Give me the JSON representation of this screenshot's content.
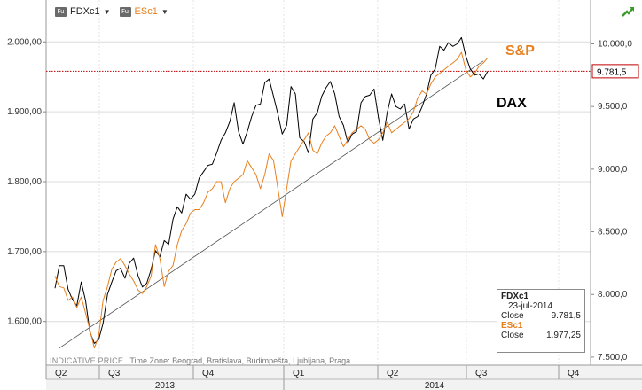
{
  "legend": {
    "ric1_icon": "Fu",
    "ric1_name": "FDXc1",
    "ric2_icon": "Fu",
    "ric2_name": "ESc1",
    "caret": "▼"
  },
  "annotations": {
    "sp_label": "S&P",
    "dax_label": "DAX",
    "last_price_flag": "9.781,5"
  },
  "infobox": {
    "series1_name": "FDXc1",
    "date": "23-jul-2014",
    "close_label": "Close",
    "series1_close": "9.781,5",
    "series2_name": "ESc1",
    "series2_close": "1.977,25"
  },
  "footer": {
    "price_type": "INDICATIVE PRICE",
    "timezone": "Time Zone: Beograd, Bratislava, Budimpešta, Ljubljana, Praga"
  },
  "colors": {
    "dax": "#000000",
    "sp": "#e8801e",
    "flag_line": "#c00000",
    "grid": "#d9d9d9"
  },
  "chart_data": {
    "type": "line",
    "left_axis": {
      "series": "ESc1",
      "ylim": [
        1540,
        2060
      ],
      "ticks": [
        1600,
        1700,
        1800,
        1900,
        2000
      ],
      "tick_labels": [
        "1.600,00",
        "1.700,00",
        "1.800,00",
        "1.900,00",
        "2.000,00"
      ]
    },
    "right_axis": {
      "series": "FDXc1",
      "ylim": [
        7450,
        10350
      ],
      "ticks": [
        7500,
        8000,
        8500,
        9000,
        9500,
        10000
      ],
      "tick_labels": [
        "7.500,0",
        "8.000,0",
        "8.500,0",
        "9.000,0",
        "9.500,0",
        "10.000,0"
      ]
    },
    "x_axis": {
      "quarters": [
        "Q2",
        "Q3",
        "Q4",
        "Q1",
        "Q2",
        "Q3",
        "Q4"
      ],
      "years": [
        "2013",
        "2014"
      ]
    },
    "series": [
      {
        "name": "FDXc1",
        "axis": "right",
        "values": [
          8050,
          8230,
          8230,
          8040,
          7960,
          7910,
          8100,
          7950,
          7700,
          7610,
          7640,
          7770,
          8000,
          8100,
          8190,
          8210,
          8130,
          8250,
          8290,
          8150,
          8060,
          8090,
          8200,
          8350,
          8300,
          8430,
          8400,
          8600,
          8700,
          8650,
          8800,
          8760,
          8800,
          8930,
          8980,
          9030,
          9040,
          9130,
          9230,
          9290,
          9380,
          9530,
          9300,
          9200,
          9300,
          9420,
          9510,
          9520,
          9690,
          9720,
          9580,
          9440,
          9280,
          9350,
          9660,
          9600,
          9250,
          9220,
          9130,
          9400,
          9450,
          9580,
          9650,
          9700,
          9600,
          9420,
          9350,
          9210,
          9280,
          9300,
          9530,
          9580,
          9590,
          9640,
          9410,
          9230,
          9450,
          9600,
          9500,
          9480,
          9520,
          9320,
          9400,
          9420,
          9500,
          9600,
          9750,
          9800,
          9980,
          9950,
          10010,
          9980,
          10000,
          10050,
          9900,
          9800,
          9750,
          9760,
          9720,
          9781.5
        ]
      },
      {
        "name": "ESc1",
        "axis": "left",
        "values": [
          1665,
          1650,
          1648,
          1630,
          1635,
          1620,
          1635,
          1612,
          1588,
          1562,
          1580,
          1630,
          1650,
          1675,
          1685,
          1690,
          1680,
          1668,
          1658,
          1645,
          1640,
          1650,
          1665,
          1710,
          1690,
          1650,
          1672,
          1680,
          1710,
          1730,
          1740,
          1755,
          1760,
          1760,
          1770,
          1785,
          1790,
          1800,
          1800,
          1770,
          1790,
          1800,
          1805,
          1810,
          1830,
          1820,
          1810,
          1790,
          1810,
          1840,
          1830,
          1790,
          1750,
          1790,
          1830,
          1840,
          1850,
          1860,
          1870,
          1845,
          1840,
          1855,
          1865,
          1870,
          1880,
          1865,
          1850,
          1860,
          1870,
          1875,
          1880,
          1875,
          1860,
          1855,
          1860,
          1870,
          1885,
          1870,
          1875,
          1880,
          1885,
          1890,
          1900,
          1920,
          1930,
          1925,
          1940,
          1950,
          1955,
          1960,
          1965,
          1970,
          1975,
          1985,
          1960,
          1950,
          1955,
          1965,
          1970,
          1977.25
        ]
      }
    ],
    "trendline": {
      "axis": "left",
      "from": {
        "index": 1,
        "value": 1562
      },
      "to": {
        "index": 98,
        "value": 1960
      }
    }
  }
}
